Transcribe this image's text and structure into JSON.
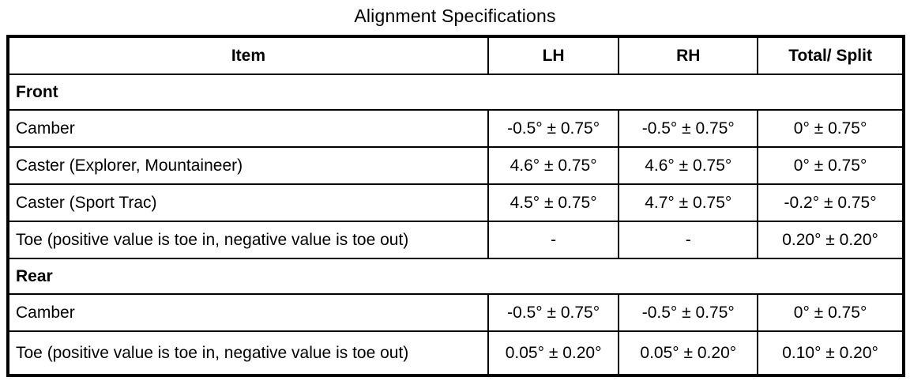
{
  "title": "Alignment Specifications",
  "colors": {
    "border": "#000000",
    "background": "#ffffff",
    "text": "#000000"
  },
  "table": {
    "columns": [
      "Item",
      "LH",
      "RH",
      "Total/ Split"
    ],
    "sections": [
      {
        "name": "Front",
        "rows": [
          {
            "item": "Camber",
            "lh": "-0.5° ± 0.75°",
            "rh": "-0.5° ± 0.75°",
            "total": "0° ± 0.75°"
          },
          {
            "item": "Caster (Explorer, Mountaineer)",
            "lh": "4.6° ± 0.75°",
            "rh": "4.6° ± 0.75°",
            "total": "0° ± 0.75°"
          },
          {
            "item": "Caster (Sport Trac)",
            "lh": "4.5° ± 0.75°",
            "rh": "4.7° ± 0.75°",
            "total": "-0.2° ± 0.75°"
          },
          {
            "item": "Toe (positive value is toe in, negative value is toe out)",
            "lh": "-",
            "rh": "-",
            "total": "0.20° ± 0.20°"
          }
        ]
      },
      {
        "name": "Rear",
        "rows": [
          {
            "item": "Camber",
            "lh": "-0.5° ± 0.75°",
            "rh": "-0.5° ± 0.75°",
            "total": "0° ± 0.75°"
          },
          {
            "item": "Toe (positive value is toe in, negative value is toe out)",
            "lh": "0.05° ± 0.20°",
            "rh": "0.05° ± 0.20°",
            "total": "0.10° ± 0.20°"
          }
        ]
      }
    ]
  }
}
